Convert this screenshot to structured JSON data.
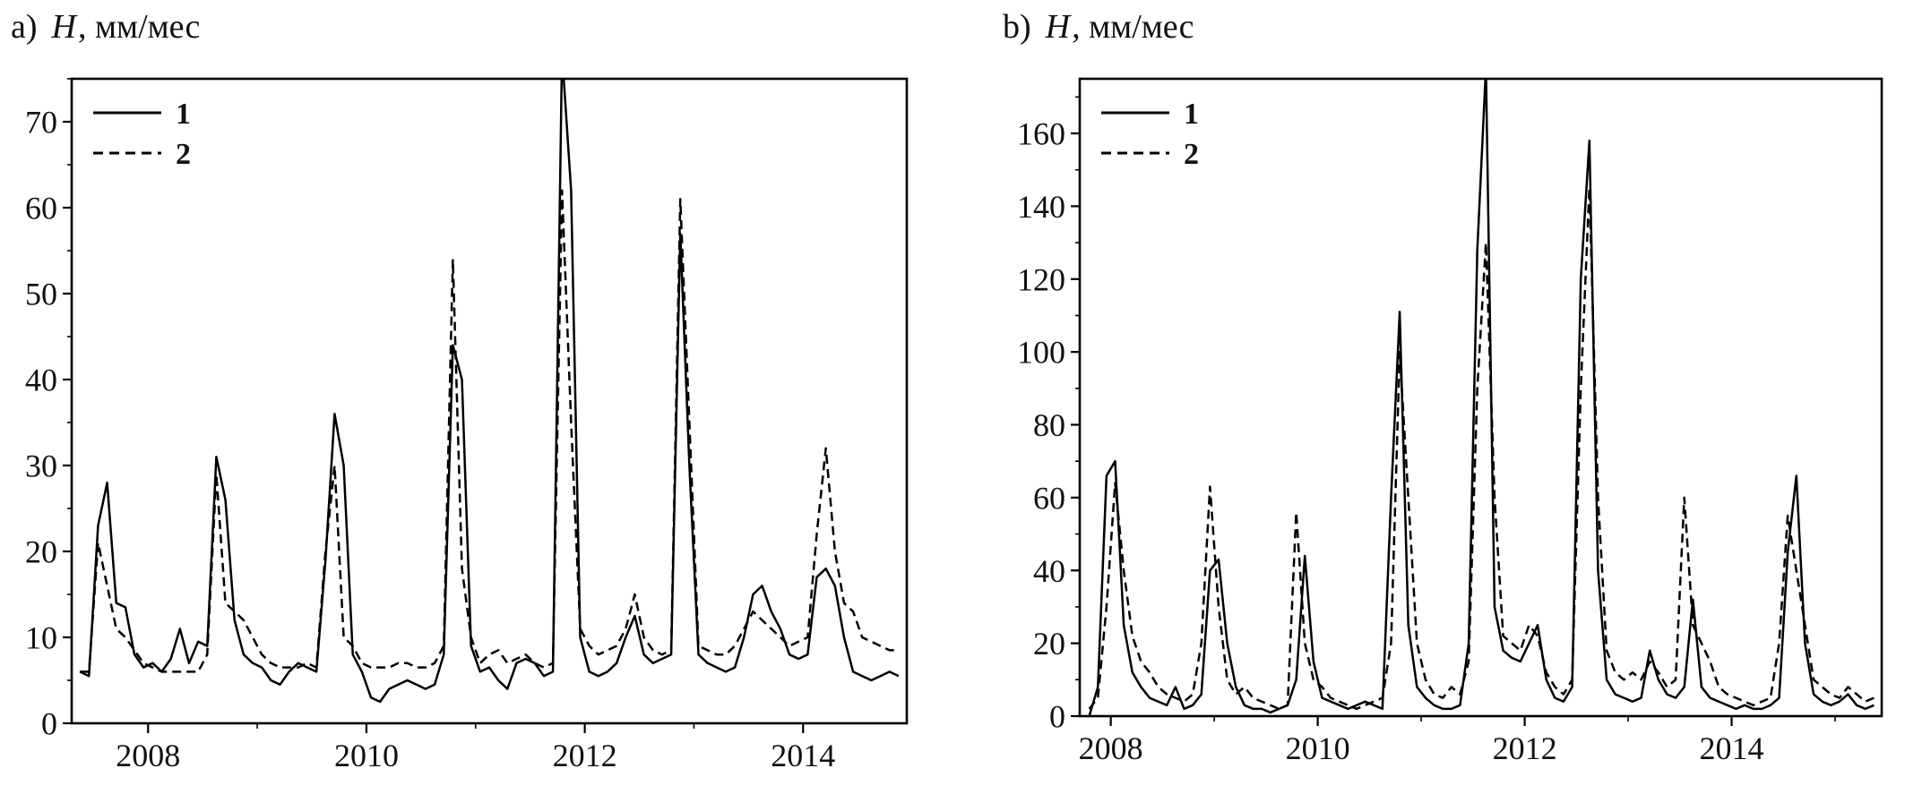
{
  "figure": {
    "background": "#ffffff",
    "line_color": "#000000",
    "text_color": "#111111"
  },
  "panels": [
    {
      "id": "a",
      "title": {
        "prefix": "a)",
        "variable": "H",
        "units": ", мм/мес"
      },
      "chart_data": {
        "type": "line",
        "title": "a) H, мм/мес",
        "xlabel": "",
        "ylabel": "H, мм/мес",
        "grid": false,
        "legend_position": "top-left",
        "xlim": [
          2007.3,
          2014.95
        ],
        "ylim": [
          0,
          75
        ],
        "x_major_ticks": [
          2008,
          2010,
          2012,
          2014
        ],
        "x_minor_ticks": [
          2009,
          2011,
          2013
        ],
        "y_major_ticks": [
          0,
          10,
          20,
          30,
          40,
          50,
          60,
          70
        ],
        "y_minor_step": 5,
        "x_start": 2007.375,
        "x_step": 0.0833333,
        "series": [
          {
            "name": "1",
            "style": "solid",
            "color": "#000000",
            "values": [
              6,
              5.5,
              23,
              28,
              14,
              13.5,
              8,
              6.5,
              7,
              6,
              7.5,
              11,
              7,
              9.5,
              9,
              31,
              26,
              12,
              8,
              7,
              6.5,
              5,
              4.5,
              6,
              7,
              6.5,
              6,
              19,
              36,
              30,
              8,
              6,
              3,
              2.5,
              4,
              4.5,
              5,
              4.5,
              4,
              4.5,
              8,
              44,
              40,
              9,
              6,
              6.5,
              5,
              4,
              7,
              7.5,
              7,
              5.5,
              6,
              78,
              62,
              10,
              6,
              5.5,
              6,
              7,
              10,
              12.5,
              8,
              7,
              7.5,
              8,
              57,
              30,
              8,
              7,
              6.5,
              6,
              6.5,
              10,
              15,
              16,
              13,
              11,
              8,
              7.5,
              8,
              17,
              18,
              16,
              10,
              6,
              5.5,
              5,
              5.5,
              6,
              5.5
            ]
          },
          {
            "name": "2",
            "style": "dashed",
            "color": "#000000",
            "values": [
              6,
              6,
              21,
              16,
              11,
              10,
              8.5,
              7,
              6.5,
              6,
              6,
              6,
              6,
              6,
              8,
              29,
              14,
              13,
              12,
              10,
              8,
              7,
              6.5,
              6.5,
              6.5,
              7,
              6.5,
              20,
              30,
              10,
              9,
              7,
              6.5,
              6.5,
              6.5,
              7,
              7,
              6.5,
              6.5,
              7,
              9,
              54,
              18,
              10,
              7,
              8,
              8.5,
              7,
              7.5,
              8,
              7,
              6.5,
              7,
              62,
              35,
              11,
              9,
              8,
              8.5,
              9,
              11,
              15,
              10,
              8.5,
              8,
              8.5,
              61,
              35,
              9,
              8.5,
              8,
              8,
              9,
              11,
              13,
              12,
              11,
              10,
              9,
              9.5,
              10,
              22,
              32,
              20,
              14,
              13,
              10,
              9.5,
              9,
              8.5,
              8.5
            ]
          }
        ]
      }
    },
    {
      "id": "b",
      "title": {
        "prefix": "b)",
        "variable": "H",
        "units": ", мм/мес"
      },
      "chart_data": {
        "type": "line",
        "title": "b) H, мм/мес",
        "xlabel": "",
        "ylabel": "H, мм/мес",
        "grid": false,
        "legend_position": "top-left",
        "xlim": [
          2007.7,
          2015.45
        ],
        "ylim": [
          0,
          175
        ],
        "x_major_ticks": [
          2008,
          2010,
          2012,
          2014
        ],
        "x_minor_ticks": [
          2009,
          2011,
          2013,
          2015
        ],
        "y_major_ticks": [
          0,
          20,
          40,
          60,
          80,
          100,
          120,
          140,
          160
        ],
        "y_minor_step": 10,
        "x_start": 2007.792,
        "x_step": 0.0833333,
        "series": [
          {
            "name": "1",
            "style": "solid",
            "color": "#000000",
            "values": [
              0,
              8,
              66,
              70,
              25,
              12,
              8,
              5,
              4,
              3,
              8,
              2,
              3,
              6,
              40,
              43,
              20,
              8,
              3,
              2,
              2,
              1,
              2,
              3,
              10,
              44,
              15,
              5,
              4,
              3,
              2,
              3,
              4,
              3,
              2,
              60,
              111,
              25,
              8,
              5,
              3,
              2,
              2,
              3,
              20,
              128,
              178,
              30,
              18,
              16,
              15,
              20,
              25,
              10,
              5,
              4,
              8,
              120,
              158,
              40,
              10,
              6,
              5,
              4,
              5,
              18,
              10,
              6,
              5,
              8,
              32,
              8,
              5,
              4,
              3,
              2,
              3,
              2,
              2,
              3,
              5,
              45,
              66,
              20,
              6,
              4,
              3,
              4,
              6,
              3,
              2,
              3
            ]
          },
          {
            "name": "2",
            "style": "dashed",
            "color": "#000000",
            "values": [
              2,
              5,
              30,
              64,
              40,
              22,
              15,
              12,
              8,
              6,
              5,
              4,
              6,
              20,
              63,
              30,
              10,
              6,
              8,
              5,
              4,
              3,
              2,
              3,
              56,
              20,
              10,
              8,
              5,
              4,
              3,
              2,
              3,
              4,
              5,
              20,
              100,
              60,
              20,
              10,
              6,
              5,
              8,
              6,
              15,
              90,
              130,
              60,
              22,
              20,
              18,
              25,
              22,
              12,
              8,
              6,
              10,
              90,
              145,
              60,
              18,
              12,
              10,
              12,
              10,
              15,
              12,
              8,
              10,
              60,
              25,
              20,
              15,
              8,
              6,
              5,
              4,
              3,
              4,
              5,
              20,
              55,
              40,
              25,
              10,
              8,
              6,
              5,
              8,
              6,
              4,
              5
            ]
          }
        ]
      }
    }
  ]
}
